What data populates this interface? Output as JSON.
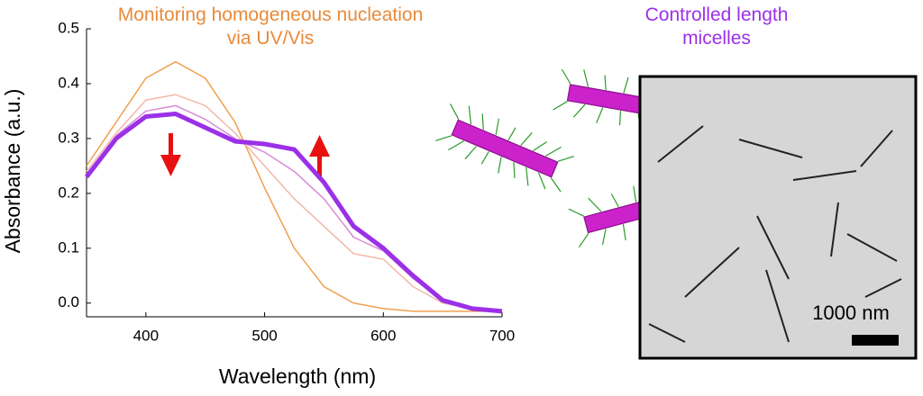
{
  "chart_data": {
    "type": "line",
    "title": "Monitoring homogeneous nucleation via UV/Vis",
    "xlabel": "Wavelength (nm)",
    "ylabel": "Absorbance (a.u.)",
    "annotations": [
      "Controlled length micelles",
      "1000 nm"
    ],
    "xlim": [
      350,
      700
    ],
    "ylim": [
      -0.025,
      0.5
    ],
    "xticks": [
      400,
      500,
      600,
      700
    ],
    "yticks": [
      {
        "value": 0,
        "label": "0.0"
      },
      0.1,
      0.2,
      0.3,
      0.4,
      0.5
    ],
    "x": [
      350,
      375,
      400,
      425,
      450,
      475,
      500,
      525,
      550,
      575,
      600,
      625,
      650,
      675,
      700
    ],
    "series": [
      {
        "color": "#f0a050",
        "values": [
          0.25,
          0.33,
          0.41,
          0.44,
          0.41,
          0.33,
          0.21,
          0.1,
          0.03,
          0.0,
          -0.01,
          -0.015,
          -0.015,
          -0.015,
          -0.015
        ]
      },
      {
        "color": "#f2b8a8",
        "values": [
          0.24,
          0.31,
          0.37,
          0.38,
          0.36,
          0.31,
          0.25,
          0.19,
          0.14,
          0.09,
          0.08,
          0.03,
          0.0,
          -0.01,
          -0.015
        ]
      },
      {
        "color": "#d88ad8",
        "values": [
          0.235,
          0.305,
          0.35,
          0.36,
          0.335,
          0.3,
          0.275,
          0.24,
          0.19,
          0.12,
          0.095,
          0.045,
          0.004,
          -0.01,
          -0.015
        ]
      },
      {
        "color": "#9b30e8",
        "values": [
          0.23,
          0.3,
          0.34,
          0.345,
          0.32,
          0.295,
          0.29,
          0.28,
          0.22,
          0.14,
          0.1,
          0.05,
          0.005,
          -0.01,
          -0.015
        ]
      }
    ]
  }
}
